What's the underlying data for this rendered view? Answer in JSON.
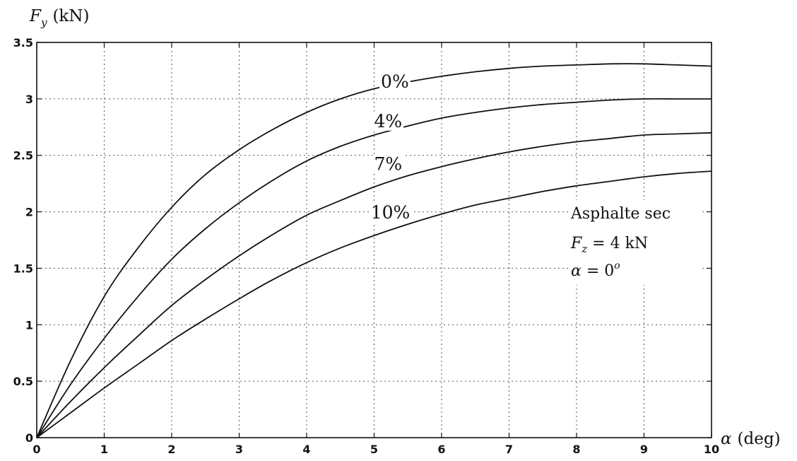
{
  "chart_data": {
    "type": "line",
    "title": "",
    "xlabel_symbol": "α",
    "xlabel_unit": "(deg)",
    "ylabel_symbol": "F",
    "ylabel_sub": "y",
    "ylabel_unit": "(kN)",
    "xlim": [
      0,
      10
    ],
    "ylim": [
      0,
      3.5
    ],
    "x_ticks": [
      0,
      1,
      2,
      3,
      4,
      5,
      6,
      7,
      8,
      9,
      10
    ],
    "y_ticks": [
      0,
      0.5,
      1,
      1.5,
      2,
      2.5,
      3,
      3.5
    ],
    "grid": true,
    "legend": "none",
    "series": [
      {
        "name": "0%",
        "label_at": [
          5.1,
          3.1
        ],
        "x": [
          0,
          0.5,
          1,
          1.5,
          2,
          2.5,
          3,
          3.5,
          4,
          4.5,
          5,
          5.5,
          6,
          6.5,
          7,
          7.5,
          8,
          8.5,
          9,
          9.5,
          10
        ],
        "y": [
          0,
          0.68,
          1.25,
          1.68,
          2.04,
          2.33,
          2.55,
          2.73,
          2.88,
          3.0,
          3.09,
          3.15,
          3.2,
          3.24,
          3.27,
          3.29,
          3.3,
          3.31,
          3.31,
          3.3,
          3.29
        ]
      },
      {
        "name": "4%",
        "label_at": [
          5.0,
          2.75
        ],
        "x": [
          0,
          0.5,
          1,
          1.5,
          2,
          2.5,
          3,
          3.5,
          4,
          4.5,
          5,
          5.5,
          6,
          6.5,
          7,
          7.5,
          8,
          8.5,
          9,
          9.5,
          10
        ],
        "y": [
          0,
          0.47,
          0.88,
          1.25,
          1.58,
          1.85,
          2.08,
          2.28,
          2.45,
          2.58,
          2.68,
          2.76,
          2.83,
          2.88,
          2.92,
          2.95,
          2.97,
          2.99,
          3.0,
          3.0,
          3.0
        ]
      },
      {
        "name": "7%",
        "label_at": [
          5.0,
          2.37
        ],
        "x": [
          0,
          0.5,
          1,
          1.5,
          2,
          2.5,
          3,
          3.5,
          4,
          4.5,
          5,
          5.5,
          6,
          6.5,
          7,
          7.5,
          8,
          8.5,
          9,
          9.5,
          10
        ],
        "y": [
          0,
          0.32,
          0.62,
          0.9,
          1.17,
          1.4,
          1.61,
          1.8,
          1.97,
          2.1,
          2.22,
          2.32,
          2.4,
          2.47,
          2.53,
          2.58,
          2.62,
          2.65,
          2.68,
          2.69,
          2.7
        ]
      },
      {
        "name": "10%",
        "label_at": [
          4.95,
          1.94
        ],
        "x": [
          0,
          0.5,
          1,
          1.5,
          2,
          2.5,
          3,
          3.5,
          4,
          4.5,
          5,
          5.5,
          6,
          6.5,
          7,
          7.5,
          8,
          8.5,
          9,
          9.5,
          10
        ],
        "y": [
          0,
          0.22,
          0.44,
          0.65,
          0.86,
          1.05,
          1.23,
          1.4,
          1.55,
          1.68,
          1.79,
          1.89,
          1.98,
          2.06,
          2.12,
          2.18,
          2.23,
          2.27,
          2.31,
          2.34,
          2.36
        ]
      }
    ],
    "annotations": [
      {
        "text": "Asphalte sec"
      },
      {
        "symbol": "F",
        "sub": "z",
        "rest": " = 4 kN"
      },
      {
        "symbol": "α",
        "rest": " = 0",
        "sup": "o"
      }
    ]
  }
}
